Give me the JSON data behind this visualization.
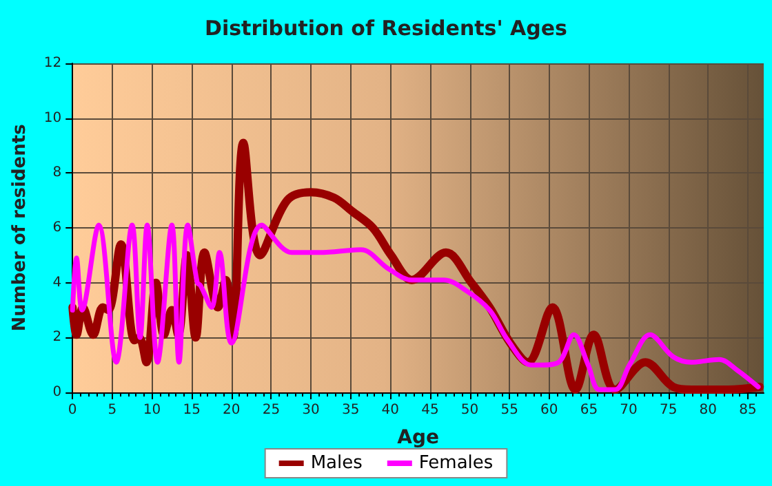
{
  "chart_data": {
    "type": "line",
    "title": "Distribution of Residents' Ages",
    "xlabel": "Age",
    "ylabel": "Number of residents",
    "xlim": [
      0,
      87
    ],
    "xticks": [
      0,
      5,
      10,
      15,
      20,
      25,
      30,
      35,
      40,
      45,
      50,
      55,
      60,
      65,
      70,
      75,
      80,
      85
    ],
    "ylim": [
      0,
      12
    ],
    "yticks": [
      0,
      2,
      4,
      6,
      8,
      10,
      12
    ],
    "grid": true,
    "legend": "bottom",
    "marker": "none",
    "line_style": "solid",
    "series": [
      {
        "name": "Males",
        "color": "#990000",
        "x": [
          0,
          0.5,
          1.3,
          2.6,
          3.8,
          4.5,
          6.1,
          7.8,
          8.4,
          9.3,
          10.5,
          11.5,
          12.5,
          13.3,
          14.4,
          15.5,
          16.6,
          18.3,
          19.3,
          20.2,
          21.5,
          23.6,
          27,
          30,
          32.9,
          35.2,
          37.8,
          40.1,
          42.7,
          47,
          50.2,
          52.5,
          55.1,
          57.3,
          60.4,
          63.3,
          65.6,
          68.3,
          72.1,
          75.6,
          77.9,
          82.5,
          86.5
        ],
        "values": [
          3.1,
          2.1,
          3.1,
          2.1,
          3.1,
          3,
          5.4,
          1.9,
          2,
          1.1,
          4,
          2.1,
          3,
          2.1,
          5,
          2,
          5.1,
          3.1,
          4.1,
          2,
          9.1,
          5,
          7,
          7.3,
          7.1,
          6.6,
          6,
          5,
          4.1,
          5.1,
          4,
          3.1,
          1.8,
          1.1,
          3.1,
          0.1,
          2.1,
          0.1,
          1.1,
          0.2,
          0.1,
          0.1,
          0.2
        ]
      },
      {
        "name": "Females",
        "color": "#ff00ff",
        "x": [
          0,
          0.5,
          1.2,
          3.3,
          5.5,
          7.5,
          8.5,
          9.4,
          10.7,
          12.5,
          13.4,
          14.5,
          15.7,
          16.1,
          17.5,
          18.5,
          20,
          23.8,
          27.6,
          31.1,
          36.3,
          39.8,
          42.7,
          46.7,
          49.6,
          52.5,
          54.8,
          57.7,
          59.1,
          61.2,
          63.1,
          64.9,
          66.3,
          68.3,
          70.1,
          72.7,
          75.6,
          77.9,
          81.4,
          83.7,
          86.3
        ],
        "values": [
          3,
          4.9,
          3,
          6.1,
          1.1,
          6.1,
          2,
          6.1,
          1.1,
          6.1,
          1.1,
          6.1,
          4,
          3.9,
          3.1,
          5.1,
          1.8,
          6.1,
          5.1,
          5.1,
          5.2,
          4.5,
          4.1,
          4.1,
          3.7,
          3,
          1.9,
          1,
          1,
          1.1,
          2.1,
          1,
          0.1,
          0.1,
          1,
          2.1,
          1.3,
          1.1,
          1.2,
          0.8,
          0.2
        ]
      }
    ]
  }
}
